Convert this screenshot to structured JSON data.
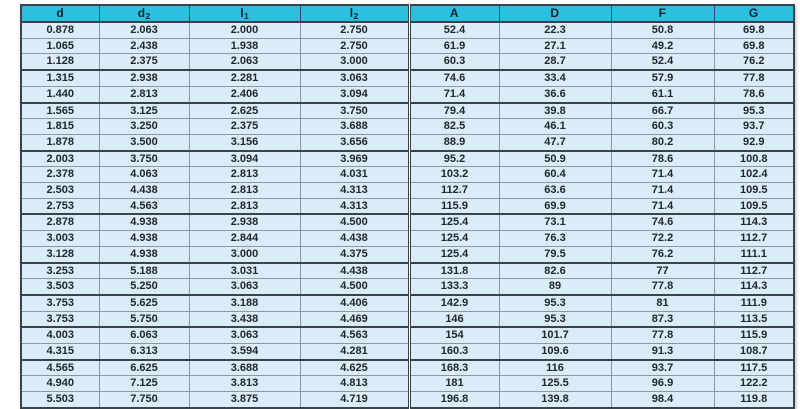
{
  "chart_data": {
    "type": "table",
    "title": "",
    "columns": [
      "d",
      "d₂",
      "l₁",
      "l₂",
      "A",
      "D",
      "F",
      "G"
    ],
    "rows": [
      [
        "0.878",
        "2.063",
        "2.000",
        "2.750",
        "52.4",
        "22.3",
        "50.8",
        "69.8"
      ],
      [
        "1.065",
        "2.438",
        "1.938",
        "2.750",
        "61.9",
        "27.1",
        "49.2",
        "69.8"
      ],
      [
        "1.128",
        "2.375",
        "2.063",
        "3.000",
        "60.3",
        "28.7",
        "52.4",
        "76.2"
      ],
      [
        "1.315",
        "2.938",
        "2.281",
        "3.063",
        "74.6",
        "33.4",
        "57.9",
        "77.8"
      ],
      [
        "1.440",
        "2.813",
        "2.406",
        "3.094",
        "71.4",
        "36.6",
        "61.1",
        "78.6"
      ],
      [
        "1.565",
        "3.125",
        "2.625",
        "3.750",
        "79.4",
        "39.8",
        "66.7",
        "95.3"
      ],
      [
        "1.815",
        "3.250",
        "2.375",
        "3.688",
        "82.5",
        "46.1",
        "60.3",
        "93.7"
      ],
      [
        "1.878",
        "3.500",
        "3.156",
        "3.656",
        "88.9",
        "47.7",
        "80.2",
        "92.9"
      ],
      [
        "2.003",
        "3.750",
        "3.094",
        "3.969",
        "95.2",
        "50.9",
        "78.6",
        "100.8"
      ],
      [
        "2.378",
        "4.063",
        "2.813",
        "4.031",
        "103.2",
        "60.4",
        "71.4",
        "102.4"
      ],
      [
        "2.503",
        "4.438",
        "2.813",
        "4.313",
        "112.7",
        "63.6",
        "71.4",
        "109.5"
      ],
      [
        "2.753",
        "4.563",
        "2.813",
        "4.313",
        "115.9",
        "69.9",
        "71.4",
        "109.5"
      ],
      [
        "2.878",
        "4.938",
        "2.938",
        "4.500",
        "125.4",
        "73.1",
        "74.6",
        "114.3"
      ],
      [
        "3.003",
        "4.938",
        "2.844",
        "4.438",
        "125.4",
        "76.3",
        "72.2",
        "112.7"
      ],
      [
        "3.128",
        "4.938",
        "3.000",
        "4.375",
        "125.4",
        "79.5",
        "76.2",
        "111.1"
      ],
      [
        "3.253",
        "5.188",
        "3.031",
        "4.438",
        "131.8",
        "82.6",
        "77",
        "112.7"
      ],
      [
        "3.503",
        "5.250",
        "3.063",
        "4.500",
        "133.3",
        "89",
        "77.8",
        "114.3"
      ],
      [
        "3.753",
        "5.625",
        "3.188",
        "4.406",
        "142.9",
        "95.3",
        "81",
        "111.9"
      ],
      [
        "3.753",
        "5.750",
        "3.438",
        "4.469",
        "146",
        "95.3",
        "87.3",
        "113.5"
      ],
      [
        "4.003",
        "6.063",
        "3.063",
        "4.563",
        "154",
        "101.7",
        "77.8",
        "115.9"
      ],
      [
        "4.315",
        "6.313",
        "3.594",
        "4.281",
        "160.3",
        "109.6",
        "91.3",
        "108.7"
      ],
      [
        "4.565",
        "6.625",
        "3.688",
        "4.625",
        "168.3",
        "116",
        "93.7",
        "117.5"
      ],
      [
        "4.940",
        "7.125",
        "3.813",
        "4.813",
        "181",
        "125.5",
        "96.9",
        "122.2"
      ],
      [
        "5.503",
        "7.750",
        "3.875",
        "4.719",
        "196.8",
        "139.8",
        "98.4",
        "119.8"
      ]
    ]
  },
  "table": {
    "columns": [
      {
        "base": "d",
        "sub": ""
      },
      {
        "base": "d",
        "sub": "2"
      },
      {
        "base": "l",
        "sub": "1"
      },
      {
        "base": "l",
        "sub": "2"
      },
      {
        "base": "A",
        "sub": ""
      },
      {
        "base": "D",
        "sub": ""
      },
      {
        "base": "F",
        "sub": ""
      },
      {
        "base": "G",
        "sub": ""
      }
    ],
    "rows": [
      [
        "0.878",
        "2.063",
        "2.000",
        "2.750",
        "52.4",
        "22.3",
        "50.8",
        "69.8"
      ],
      [
        "1.065",
        "2.438",
        "1.938",
        "2.750",
        "61.9",
        "27.1",
        "49.2",
        "69.8"
      ],
      [
        "1.128",
        "2.375",
        "2.063",
        "3.000",
        "60.3",
        "28.7",
        "52.4",
        "76.2"
      ],
      [
        "1.315",
        "2.938",
        "2.281",
        "3.063",
        "74.6",
        "33.4",
        "57.9",
        "77.8"
      ],
      [
        "1.440",
        "2.813",
        "2.406",
        "3.094",
        "71.4",
        "36.6",
        "61.1",
        "78.6"
      ],
      [
        "1.565",
        "3.125",
        "2.625",
        "3.750",
        "79.4",
        "39.8",
        "66.7",
        "95.3"
      ],
      [
        "1.815",
        "3.250",
        "2.375",
        "3.688",
        "82.5",
        "46.1",
        "60.3",
        "93.7"
      ],
      [
        "1.878",
        "3.500",
        "3.156",
        "3.656",
        "88.9",
        "47.7",
        "80.2",
        "92.9"
      ],
      [
        "2.003",
        "3.750",
        "3.094",
        "3.969",
        "95.2",
        "50.9",
        "78.6",
        "100.8"
      ],
      [
        "2.378",
        "4.063",
        "2.813",
        "4.031",
        "103.2",
        "60.4",
        "71.4",
        "102.4"
      ],
      [
        "2.503",
        "4.438",
        "2.813",
        "4.313",
        "112.7",
        "63.6",
        "71.4",
        "109.5"
      ],
      [
        "2.753",
        "4.563",
        "2.813",
        "4.313",
        "115.9",
        "69.9",
        "71.4",
        "109.5"
      ],
      [
        "2.878",
        "4.938",
        "2.938",
        "4.500",
        "125.4",
        "73.1",
        "74.6",
        "114.3"
      ],
      [
        "3.003",
        "4.938",
        "2.844",
        "4.438",
        "125.4",
        "76.3",
        "72.2",
        "112.7"
      ],
      [
        "3.128",
        "4.938",
        "3.000",
        "4.375",
        "125.4",
        "79.5",
        "76.2",
        "111.1"
      ],
      [
        "3.253",
        "5.188",
        "3.031",
        "4.438",
        "131.8",
        "82.6",
        "77",
        "112.7"
      ],
      [
        "3.503",
        "5.250",
        "3.063",
        "4.500",
        "133.3",
        "89",
        "77.8",
        "114.3"
      ],
      [
        "3.753",
        "5.625",
        "3.188",
        "4.406",
        "142.9",
        "95.3",
        "81",
        "111.9"
      ],
      [
        "3.753",
        "5.750",
        "3.438",
        "4.469",
        "146",
        "95.3",
        "87.3",
        "113.5"
      ],
      [
        "4.003",
        "6.063",
        "3.063",
        "4.563",
        "154",
        "101.7",
        "77.8",
        "115.9"
      ],
      [
        "4.315",
        "6.313",
        "3.594",
        "4.281",
        "160.3",
        "109.6",
        "91.3",
        "108.7"
      ],
      [
        "4.565",
        "6.625",
        "3.688",
        "4.625",
        "168.3",
        "116",
        "93.7",
        "117.5"
      ],
      [
        "4.940",
        "7.125",
        "3.813",
        "4.813",
        "181",
        "125.5",
        "96.9",
        "122.2"
      ],
      [
        "5.503",
        "7.750",
        "3.875",
        "4.719",
        "196.8",
        "139.8",
        "98.4",
        "119.8"
      ]
    ],
    "group_end_rows": [
      3,
      5,
      8,
      12,
      15,
      17,
      19,
      21
    ],
    "double_rule_before_column": 4
  },
  "colors": {
    "header_bg": "#2bbfe0",
    "header_text": "#13222d",
    "row_bg": "#d9ecf7",
    "grid": "#8b98a1",
    "frame": "#39434b",
    "text": "#21272c"
  }
}
